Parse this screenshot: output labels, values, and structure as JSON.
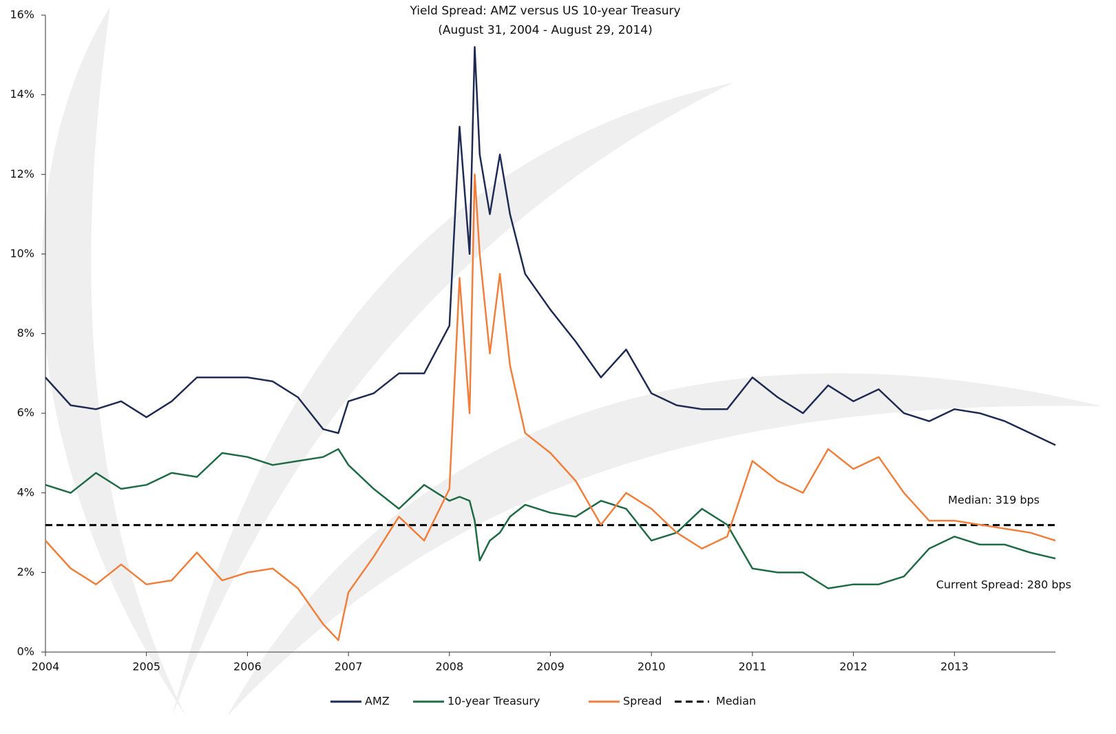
{
  "chart_data": {
    "type": "line",
    "title": "Yield Spread: AMZ versus US 10-year Treasury",
    "subtitle": "(August 31, 2004 - August 29, 2014)",
    "x": [
      2004,
      2004.25,
      2004.5,
      2004.75,
      2005,
      2005.25,
      2005.5,
      2005.75,
      2006,
      2006.25,
      2006.5,
      2006.75,
      2006.9,
      2007,
      2007.25,
      2007.5,
      2007.75,
      2008,
      2008.1,
      2008.2,
      2008.25,
      2008.3,
      2008.4,
      2008.5,
      2008.6,
      2008.75,
      2009,
      2009.25,
      2009.5,
      2009.75,
      2010,
      2010.25,
      2010.5,
      2010.75,
      2011,
      2011.25,
      2011.5,
      2011.75,
      2012,
      2012.25,
      2012.5,
      2012.75,
      2013,
      2013.25,
      2013.5,
      2013.75,
      2014
    ],
    "series": [
      {
        "name": "AMZ",
        "color": "#1f2b52",
        "values": [
          6.9,
          6.2,
          6.1,
          6.3,
          5.9,
          6.3,
          6.9,
          6.9,
          6.9,
          6.8,
          6.4,
          5.6,
          5.5,
          6.3,
          6.5,
          7.0,
          7.0,
          8.2,
          13.2,
          10.0,
          15.2,
          12.5,
          11.0,
          12.5,
          11.0,
          9.5,
          8.6,
          7.8,
          6.9,
          7.6,
          6.5,
          6.2,
          6.1,
          6.1,
          6.9,
          6.4,
          6.0,
          6.7,
          6.3,
          6.6,
          6.0,
          5.8,
          6.1,
          6.0,
          5.8,
          5.5,
          5.2
        ]
      },
      {
        "name": "10-year Treasury",
        "color": "#1f6b45",
        "values": [
          4.2,
          4.0,
          4.5,
          4.1,
          4.2,
          4.5,
          4.4,
          5.0,
          4.9,
          4.7,
          4.8,
          4.9,
          5.1,
          4.7,
          4.1,
          3.6,
          4.2,
          3.8,
          3.9,
          3.8,
          3.3,
          2.3,
          2.8,
          3.0,
          3.4,
          3.7,
          3.5,
          3.4,
          3.8,
          3.6,
          2.8,
          3.0,
          3.6,
          3.2,
          2.1,
          2.0,
          2.0,
          1.6,
          1.7,
          1.7,
          1.9,
          2.6,
          2.9,
          2.7,
          2.7,
          2.5,
          2.35
        ]
      },
      {
        "name": "Spread",
        "color": "#f07f3c",
        "values": [
          2.8,
          2.1,
          1.7,
          2.2,
          1.7,
          1.8,
          2.5,
          1.8,
          2.0,
          2.1,
          1.6,
          0.7,
          0.3,
          1.5,
          2.4,
          3.4,
          2.8,
          4.1,
          9.4,
          6.0,
          12.0,
          10.0,
          7.5,
          9.5,
          7.2,
          5.5,
          5.0,
          4.3,
          3.2,
          4.0,
          3.6,
          3.0,
          2.6,
          2.9,
          4.8,
          4.3,
          4.0,
          5.1,
          4.6,
          4.9,
          4.0,
          3.3,
          3.3,
          3.2,
          3.1,
          3.0,
          2.8
        ]
      }
    ],
    "median": {
      "name": "Median",
      "value": 3.19,
      "color": "#000000"
    },
    "annotations": [
      "Median: 319 bps",
      "Current Spread: 280 bps"
    ],
    "xlim": [
      2004,
      2014
    ],
    "xticks": [
      2004,
      2005,
      2006,
      2007,
      2008,
      2009,
      2010,
      2011,
      2012,
      2013
    ],
    "ylim": [
      0,
      16
    ],
    "yticks": [
      {
        "value": 0,
        "label": "0%"
      },
      {
        "value": 2,
        "label": "2%"
      },
      {
        "value": 4,
        "label": "4%"
      },
      {
        "value": 6,
        "label": "6%"
      },
      {
        "value": 8,
        "label": "8%"
      },
      {
        "value": 10,
        "label": "10%"
      },
      {
        "value": 12,
        "label": "12%"
      },
      {
        "value": 14,
        "label": "14%"
      },
      {
        "value": 16,
        "label": "16%"
      }
    ],
    "legend": "bottom"
  }
}
